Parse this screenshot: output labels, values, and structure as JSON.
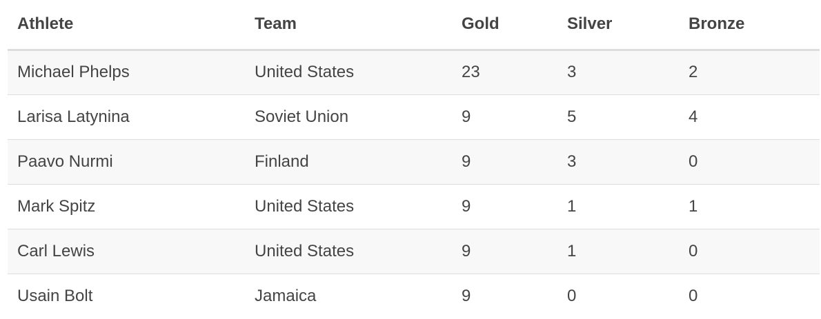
{
  "table": {
    "headers": [
      "Athlete",
      "Team",
      "Gold",
      "Silver",
      "Bronze"
    ],
    "rows": [
      [
        "Michael Phelps",
        "United States",
        "23",
        "3",
        "2"
      ],
      [
        "Larisa Latynina",
        "Soviet Union",
        "9",
        "5",
        "4"
      ],
      [
        "Paavo Nurmi",
        "Finland",
        "9",
        "3",
        "0"
      ],
      [
        "Mark Spitz",
        "United States",
        "9",
        "1",
        "1"
      ],
      [
        "Carl Lewis",
        "United States",
        "9",
        "1",
        "0"
      ],
      [
        "Usain Bolt",
        "Jamaica",
        "9",
        "0",
        "0"
      ]
    ]
  }
}
